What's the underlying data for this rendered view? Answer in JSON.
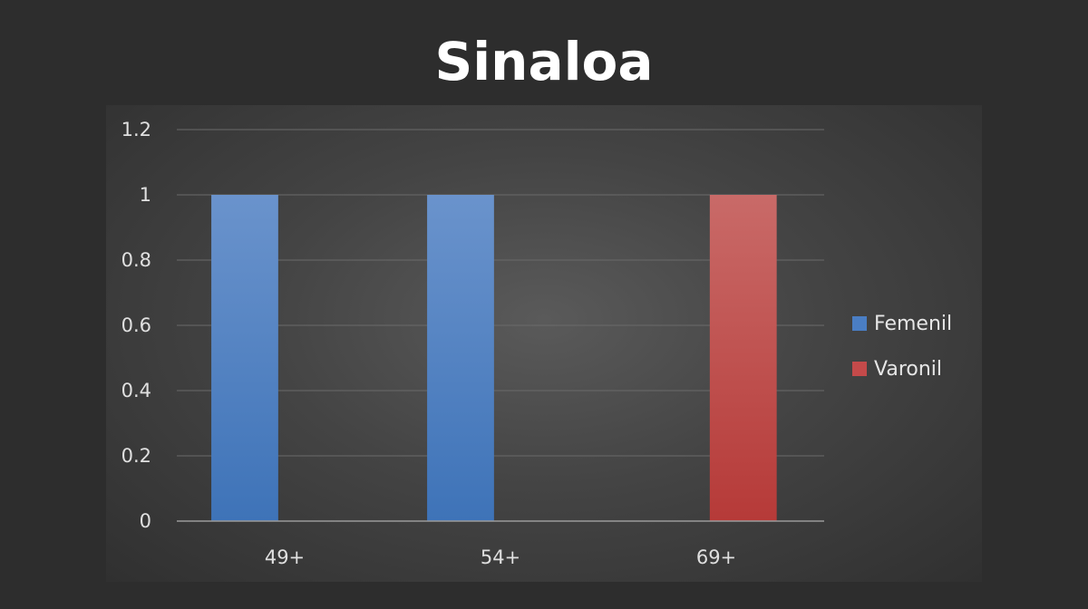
{
  "chart_data": {
    "type": "bar",
    "title": "Sinaloa",
    "xlabel": "",
    "ylabel": "",
    "categories": [
      "49+",
      "54+",
      "69+"
    ],
    "ylim": [
      0,
      1.2
    ],
    "yticks": [
      "0",
      "0.2",
      "0.4",
      "0.6",
      "0.8",
      "1",
      "1.2"
    ],
    "grid": true,
    "legend_position": "right",
    "series": [
      {
        "name": "Femenil",
        "values": [
          1,
          1,
          0
        ],
        "color": "#4a7ec4"
      },
      {
        "name": "Varonil",
        "values": [
          0,
          0,
          1
        ],
        "color": "#c44a4a"
      }
    ]
  }
}
